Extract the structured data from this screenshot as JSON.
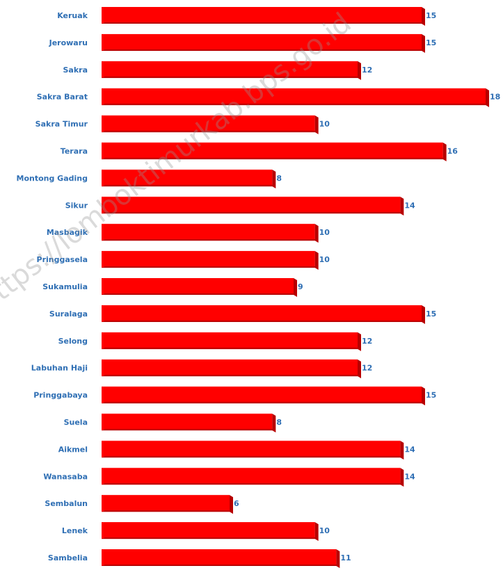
{
  "chart_data": {
    "type": "bar",
    "orientation": "horizontal",
    "categories": [
      "Keruak",
      "Jerowaru",
      "Sakra",
      "Sakra Barat",
      "Sakra Timur",
      "Terara",
      "Montong Gading",
      "Sikur",
      "Masbagik",
      "Pringgasela",
      "Sukamulia",
      "Suralaga",
      "Selong",
      "Labuhan Haji",
      "Pringgabaya",
      "Suela",
      "Aikmel",
      "Wanasaba",
      "Sembalun",
      "Lenek",
      "Sambelia"
    ],
    "values": [
      15,
      15,
      12,
      18,
      10,
      16,
      8,
      14,
      10,
      10,
      9,
      15,
      12,
      12,
      15,
      8,
      14,
      14,
      6,
      10,
      11
    ],
    "xlim": [
      0,
      18
    ],
    "grid": false,
    "legend": "none",
    "bar_color": "#ff0000",
    "bar_shade": "#b80000",
    "label_color": "#2f6fb4"
  },
  "watermark": "https://lomboktimurkab.bps.go.id"
}
